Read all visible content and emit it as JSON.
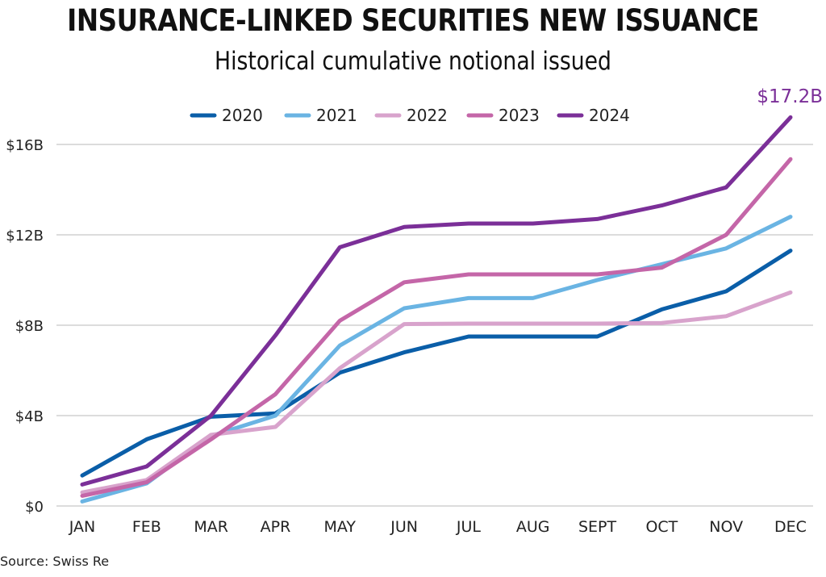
{
  "chart_data": {
    "type": "line",
    "title": "INSURANCE-LINKED SECURITIES NEW ISSUANCE",
    "subtitle": "Historical cumulative notional issued",
    "xlabel": "",
    "ylabel": "",
    "categories": [
      "JAN",
      "FEB",
      "MAR",
      "APR",
      "MAY",
      "JUN",
      "JUL",
      "AUG",
      "SEPT",
      "OCT",
      "NOV",
      "DEC"
    ],
    "ylim": [
      0,
      16
    ],
    "yticks": [
      0,
      4,
      8,
      12,
      16
    ],
    "ytick_labels": [
      "$0",
      "$4B",
      "$8B",
      "$12B",
      "$16B"
    ],
    "grid": true,
    "legend_position": "top-center",
    "series": [
      {
        "name": "2020",
        "color": "#0a5ea8",
        "values": [
          1.35,
          2.95,
          3.95,
          4.1,
          5.9,
          6.8,
          7.5,
          7.5,
          7.5,
          8.7,
          9.5,
          11.3
        ]
      },
      {
        "name": "2021",
        "color": "#6ab4e3",
        "values": [
          0.2,
          1.0,
          3.1,
          4.0,
          7.1,
          8.75,
          9.2,
          9.2,
          10.0,
          10.7,
          11.4,
          12.8
        ]
      },
      {
        "name": "2022",
        "color": "#d8a3cc",
        "values": [
          0.6,
          1.15,
          3.15,
          3.5,
          6.1,
          8.05,
          8.07,
          8.07,
          8.07,
          8.1,
          8.4,
          9.45
        ]
      },
      {
        "name": "2023",
        "color": "#c466a8",
        "values": [
          0.45,
          1.05,
          2.95,
          4.95,
          8.2,
          9.9,
          10.25,
          10.25,
          10.25,
          10.55,
          12.0,
          15.35
        ]
      },
      {
        "name": "2024",
        "color": "#7b2f98",
        "values": [
          0.95,
          1.75,
          4.0,
          7.55,
          11.45,
          12.35,
          12.5,
          12.5,
          12.7,
          13.3,
          14.1,
          17.2
        ]
      }
    ],
    "annotations": [
      {
        "text": "$17.2B",
        "series": "2024",
        "category": "DEC",
        "color": "#7b2f98"
      }
    ],
    "source": "Source: Swiss Re"
  }
}
